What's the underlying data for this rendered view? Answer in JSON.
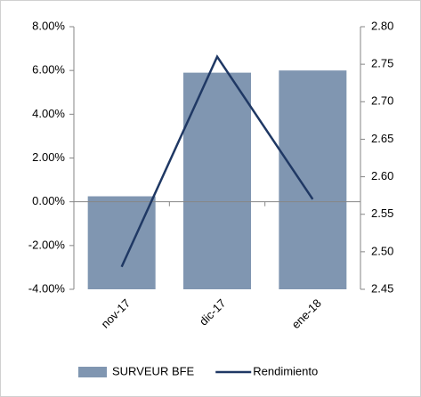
{
  "chart_data": {
    "type": "bar_line",
    "categories": [
      "nov-17",
      "dic-17",
      "ene-18"
    ],
    "series": [
      {
        "name": "SURVEUR BFE",
        "color": "#8096b1",
        "type": "bar",
        "values": [
          0.25,
          5.9,
          6.0
        ]
      },
      {
        "name": "Rendimiento",
        "color": "#1f3864",
        "type": "line",
        "axis": "y2",
        "values": [
          2.48,
          2.76,
          2.57
        ]
      }
    ],
    "ylim": [
      -4,
      8
    ],
    "yticks": [
      {
        "value": -4,
        "label": "-4.00%"
      },
      {
        "value": -2,
        "label": "-2.00%"
      },
      {
        "value": 0,
        "label": "0.00%"
      },
      {
        "value": 2,
        "label": "2.00%"
      },
      {
        "value": 4,
        "label": "4.00%"
      },
      {
        "value": 6,
        "label": "6.00%"
      },
      {
        "value": 8,
        "label": "8.00%"
      }
    ],
    "y2lim": [
      2.45,
      2.8
    ],
    "y2ticks": [
      2.45,
      {
        "value": 2.5,
        "label": "2.50"
      },
      2.55,
      {
        "value": 2.6,
        "label": "2.60"
      },
      2.65,
      {
        "value": 2.7,
        "label": "2.70"
      },
      2.75,
      {
        "value": 2.8,
        "label": "2.80"
      }
    ],
    "legend": "bottom"
  }
}
